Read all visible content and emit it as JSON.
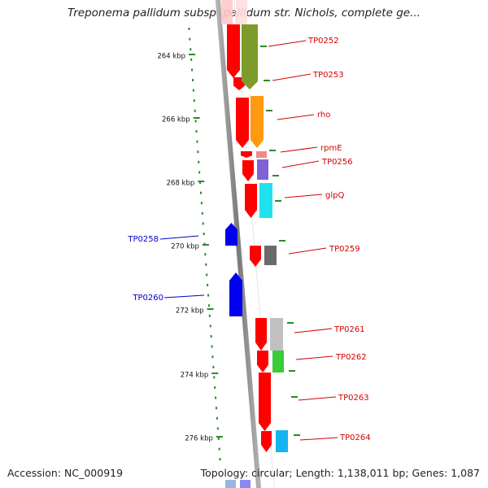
{
  "title": "Treponema pallidum subsp. pallidum str. Nichols, complete ge...",
  "footer": {
    "accession": "Accession: NC_000919",
    "summary": "Topology: circular; Length: 1,138,011 bp; Genes: 1,087"
  },
  "colors": {
    "backbone": "#8c8c8c",
    "ruler_tick": "#2a8a2a",
    "label_right": "#d40000",
    "label_left": "#0000cc"
  },
  "ruler": [
    "264 kbp",
    "266 kbp",
    "268 kbp",
    "270 kbp",
    "272 kbp",
    "274 kbp",
    "276 kbp"
  ],
  "genes_right": [
    {
      "name": "TP0252",
      "color": "#7d9b2a"
    },
    {
      "name": "TP0253",
      "color": "#7d9b2a"
    },
    {
      "name": "rho",
      "color": "#ff9a10"
    },
    {
      "name": "rpmE",
      "color": "#f08a8a"
    },
    {
      "name": "TP0256",
      "color": "#7e62d6"
    },
    {
      "name": "glpQ",
      "color": "#1fe2ee"
    },
    {
      "name": "TP0259",
      "color": "#6a6a6a"
    },
    {
      "name": "TP0261",
      "color": "#c0c0c0"
    },
    {
      "name": "TP0262",
      "color": "#39cc39"
    },
    {
      "name": "TP0263",
      "color": "#ff0000"
    },
    {
      "name": "TP0264",
      "color": "#14b4ee"
    }
  ],
  "genes_left": [
    {
      "name": "TP0258",
      "color": "#0000ee"
    },
    {
      "name": "TP0260",
      "color": "#0000ee"
    }
  ]
}
